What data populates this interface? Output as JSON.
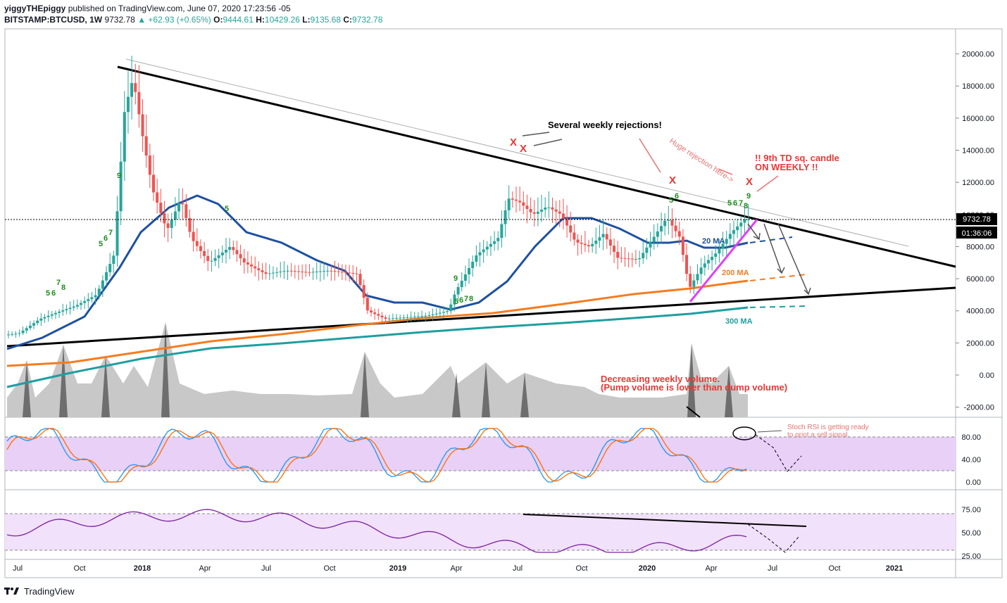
{
  "header": {
    "user": "yiggyTHEpiggy",
    "published": "published on TradingView.com, June 07, 2020 17:23:56 -05",
    "symbol": "BITSTAMP:BTCUSD, 1W",
    "last": "9732.78",
    "change": "▲ +62.93 (+0.65%)",
    "o_label": "O:",
    "o": "9444.61",
    "h_label": "H:",
    "h": "10429.26",
    "l_label": "L:",
    "l": "9135.68",
    "c_label": "C:",
    "c": "9732.78"
  },
  "footer": {
    "brand": "TradingView"
  },
  "colors": {
    "up": "#26a69a",
    "down": "#ef5350",
    "ma20": "#1e50a0",
    "ma200": "#f57c1f",
    "ma300": "#1e9ea0",
    "pink": "#e040fb",
    "red_text": "#e53935",
    "td": "#1b8c1b"
  },
  "chart_data": {
    "type": "candlestick",
    "timeframe": "1W",
    "price_axis": {
      "ticks": [
        20000,
        18000,
        16000,
        14000,
        12000,
        10000,
        8000,
        6000,
        4000,
        2000,
        0,
        -2000
      ],
      "tick_labels": [
        "20000.00",
        "18000.00",
        "16000.00",
        "14000.00",
        "12000.00",
        "10000.00",
        "8000.00",
        "6000.00",
        "4000.00",
        "2000.00",
        "0.00",
        "-2000.00"
      ],
      "last_price": "9732.78",
      "countdown": "01:36:06"
    },
    "time_axis": [
      "Jul",
      "Oct",
      "2018",
      "Apr",
      "Jul",
      "Oct",
      "2019",
      "Apr",
      "Jul",
      "Oct",
      "2020",
      "Apr",
      "Jul",
      "Oct",
      "2021"
    ],
    "series": [
      {
        "name": "BTCUSD close",
        "x": [
          "2017-07",
          "2017-09",
          "2017-11",
          "2017-12",
          "2018-01",
          "2018-03",
          "2018-05",
          "2018-07",
          "2018-09",
          "2018-11",
          "2018-12",
          "2019-02",
          "2019-04",
          "2019-06",
          "2019-07",
          "2019-09",
          "2019-10",
          "2019-12",
          "2020-02",
          "2020-03",
          "2020-04",
          "2020-06"
        ],
        "values": [
          2500,
          4300,
          7500,
          16500,
          11500,
          8000,
          8500,
          6500,
          6600,
          4000,
          3700,
          3800,
          5200,
          11000,
          10500,
          8300,
          9200,
          7300,
          9800,
          5400,
          7600,
          9733
        ]
      }
    ],
    "moving_averages": [
      {
        "name": "20 MA",
        "values_start_end": [
          1700,
          8500
        ]
      },
      {
        "name": "200 MA",
        "values_start_end": [
          600,
          6000
        ]
      },
      {
        "name": "300 MA",
        "values_start_end": [
          -300,
          4100
        ]
      }
    ],
    "td_labels": [
      "5",
      "6",
      "7",
      "8",
      "9"
    ],
    "rejection_marks": [
      "X",
      "X",
      "X",
      "X"
    ],
    "stoch_rsi": {
      "ticks": [
        80,
        40,
        0
      ],
      "tick_labels": [
        "80.00",
        "40.00",
        "0.00"
      ],
      "band": [
        20,
        80
      ]
    },
    "rsi": {
      "ticks": [
        75,
        50,
        25
      ],
      "tick_labels": [
        "75.00",
        "50.00",
        "25.00"
      ],
      "band": [
        30,
        70
      ]
    },
    "annotations": [
      "Several weekly rejections!",
      "Huge rejection here->",
      "!! 9th TD sq. candle",
      "ON WEEKLY !!",
      "20 MA",
      "200 MA",
      "300 MA",
      "Decreasing weekly volume.",
      "(Pump volume is lower than dump volume)",
      "Stoch RSI is getting ready",
      "to print a sell signal."
    ]
  }
}
